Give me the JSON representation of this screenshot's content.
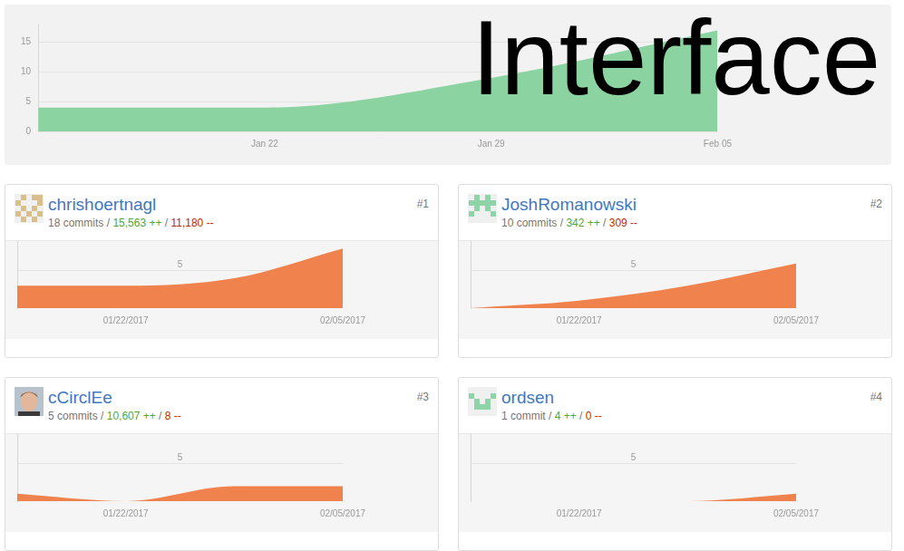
{
  "overlay_text": "Interface",
  "chart_data": {
    "type": "area",
    "categories": [
      null,
      "Jan 22",
      "Jan 29",
      "Feb 05"
    ],
    "values": [
      4,
      4,
      9,
      17
    ],
    "color": "#8cd3a2",
    "ylim": [
      0,
      18
    ],
    "yticks": [
      0,
      5,
      10,
      15
    ],
    "grid": true
  },
  "stats_separator": " / ",
  "contributors": [
    {
      "rank": "#1",
      "name": "chrishoertnagl",
      "stats": [
        "18 commits",
        "15,563 ++",
        "11,180 --"
      ],
      "chart_data": {
        "type": "area",
        "categories": [
          null,
          "01/22/2017",
          null,
          "02/05/2017"
        ],
        "values": [
          3,
          3,
          4,
          8
        ],
        "color": "#f0824d",
        "ylim": [
          0,
          9
        ],
        "yticks": [
          5
        ],
        "grid": true
      }
    },
    {
      "rank": "#2",
      "name": "JoshRomanowski",
      "stats": [
        "10 commits",
        "342 ++",
        "309 --"
      ],
      "chart_data": {
        "type": "area",
        "categories": [
          null,
          "01/22/2017",
          null,
          "02/05/2017"
        ],
        "values": [
          0,
          1,
          3,
          6
        ],
        "color": "#f0824d",
        "ylim": [
          0,
          9
        ],
        "yticks": [
          5
        ],
        "grid": true
      }
    },
    {
      "rank": "#3",
      "name": "cCirclEe",
      "stats": [
        "5 commits",
        "10,607 ++",
        "8 --"
      ],
      "chart_data": {
        "type": "area",
        "categories": [
          null,
          "01/22/2017",
          null,
          "02/05/2017"
        ],
        "values": [
          1,
          0,
          2,
          2
        ],
        "color": "#f0824d",
        "ylim": [
          0,
          9
        ],
        "yticks": [
          5
        ],
        "grid": true
      }
    },
    {
      "rank": "#4",
      "name": "ordsen",
      "stats": [
        "1 commit",
        "4 ++",
        "0 --"
      ],
      "chart_data": {
        "type": "area",
        "categories": [
          null,
          "01/22/2017",
          null,
          "02/05/2017"
        ],
        "values": [
          0,
          0,
          0,
          1
        ],
        "color": "#f0824d",
        "ylim": [
          0,
          9
        ],
        "yticks": [
          5
        ],
        "grid": true
      }
    }
  ]
}
